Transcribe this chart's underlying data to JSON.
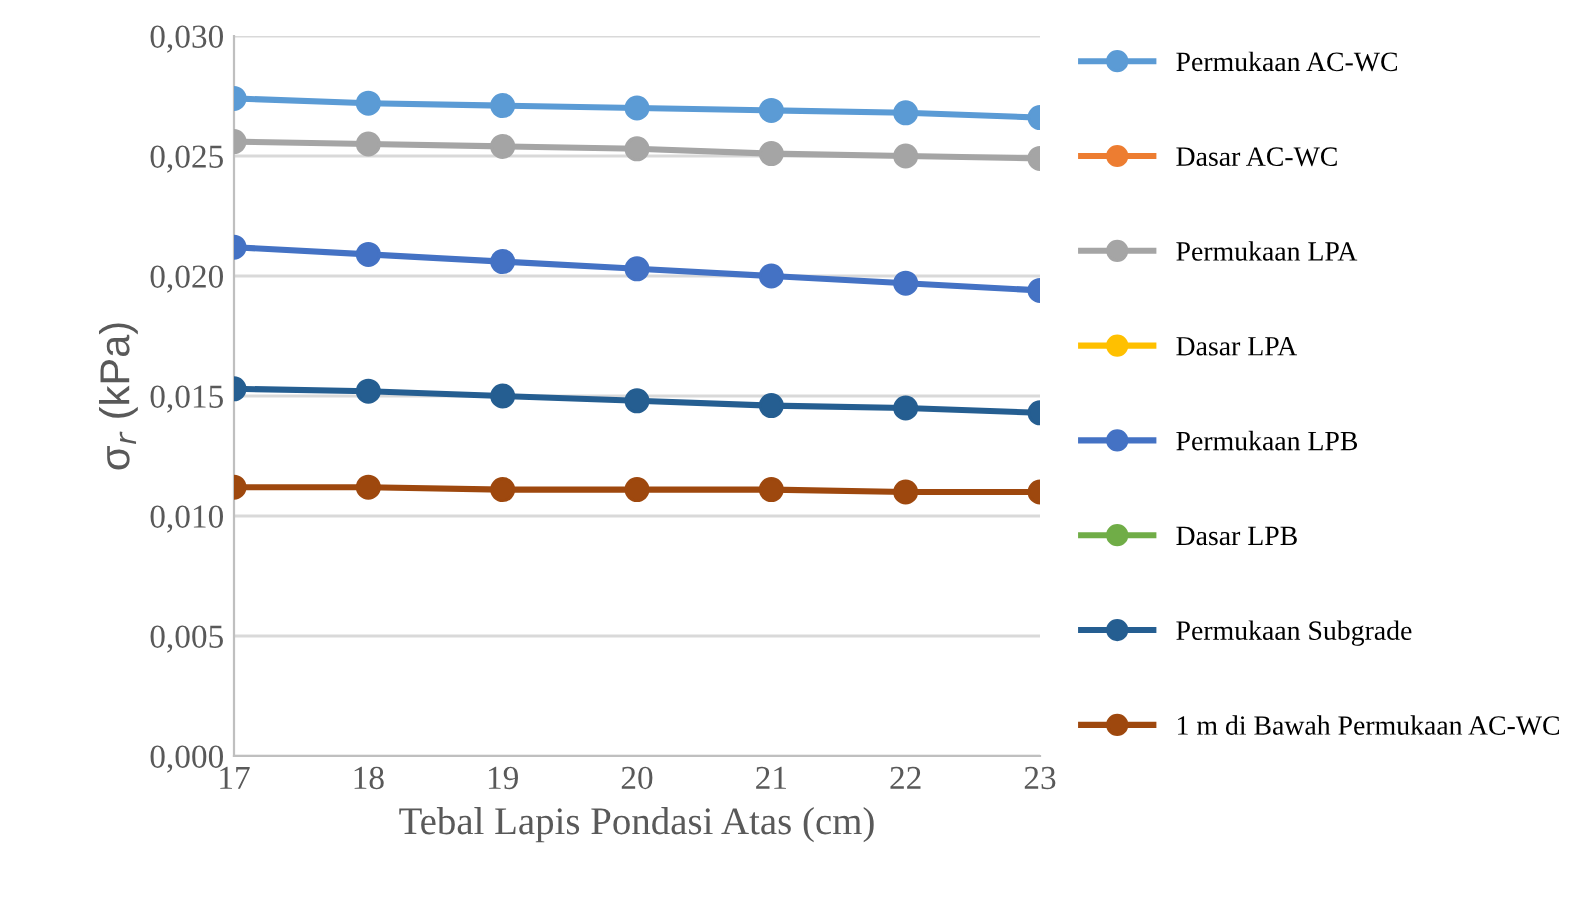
{
  "chart_data": {
    "type": "line",
    "xlabel": "Tebal Lapis Pondasi Atas (cm)",
    "ylabel": "σ$_{r}$ (kPa)",
    "x": [
      17,
      18,
      19,
      20,
      21,
      22,
      23
    ],
    "xlim": [
      17,
      23
    ],
    "xticks": [
      17,
      18,
      19,
      20,
      21,
      22,
      23
    ],
    "ylim": [
      0,
      0.03
    ],
    "yticks": [
      {
        "value": 0,
        "label": "0,000"
      },
      {
        "value": 0.005,
        "label": "0,005"
      },
      {
        "value": 0.01,
        "label": "0,010"
      },
      {
        "value": 0.015,
        "label": "0,015"
      },
      {
        "value": 0.02,
        "label": "0,020"
      },
      {
        "value": 0.025,
        "label": "0,025"
      },
      {
        "value": 0.03,
        "label": "0,030"
      }
    ],
    "grid": "y",
    "legend": "right",
    "marker": "circle",
    "line_style": "solid",
    "series": [
      {
        "name": "Permukaan AC-WC",
        "color": "#5b9bd5",
        "values": [
          0.0274,
          0.0272,
          0.0271,
          0.027,
          0.0269,
          0.0268,
          0.0266
        ]
      },
      {
        "name": "Dasar AC-WC",
        "color": "#ed7d31",
        "values": [
          null,
          null,
          null,
          null,
          null,
          null,
          null
        ]
      },
      {
        "name": "Permukaan LPA",
        "color": "#a5a5a5",
        "values": [
          0.0256,
          0.0255,
          0.0254,
          0.0253,
          0.0251,
          0.025,
          0.0249
        ]
      },
      {
        "name": "Dasar LPA",
        "color": "#ffc000",
        "values": [
          null,
          null,
          null,
          null,
          null,
          null,
          null
        ]
      },
      {
        "name": "Permukaan LPB",
        "color": "#4472c4",
        "values": [
          0.0212,
          0.0209,
          0.0206,
          0.0203,
          0.02,
          0.0197,
          0.0194
        ]
      },
      {
        "name": "Dasar LPB",
        "color": "#70ad47",
        "values": [
          null,
          null,
          null,
          null,
          null,
          null,
          null
        ]
      },
      {
        "name": "Permukaan Subgrade",
        "color": "#255e91",
        "values": [
          0.0153,
          0.0152,
          0.015,
          0.0148,
          0.0146,
          0.0145,
          0.0143
        ]
      },
      {
        "name": "1 m di Bawah Permukaan AC-WC",
        "color": "#9e480e",
        "values": [
          0.0112,
          0.0112,
          0.0111,
          0.0111,
          0.0111,
          0.011,
          0.011
        ]
      }
    ]
  }
}
